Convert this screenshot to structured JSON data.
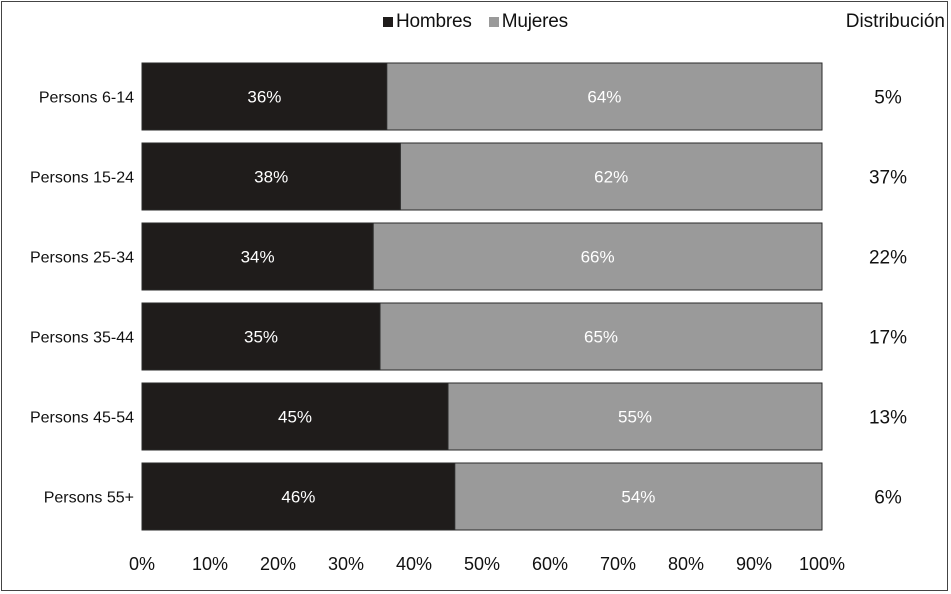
{
  "chart_data": {
    "type": "bar",
    "orientation": "horizontal",
    "stacked": true,
    "normalized_percent": true,
    "categories": [
      "Persons 6-14",
      "Persons 15-24",
      "Persons 25-34",
      "Persons 35-44",
      "Persons 45-54",
      "Persons 55+"
    ],
    "series": [
      {
        "name": "Hombres",
        "values": [
          36,
          38,
          34,
          35,
          45,
          46
        ],
        "labels": [
          "36%",
          "38%",
          "34%",
          "35%",
          "45%",
          "46%"
        ]
      },
      {
        "name": "Mujeres",
        "values": [
          64,
          62,
          66,
          65,
          55,
          54
        ],
        "labels": [
          "64%",
          "62%",
          "66%",
          "65%",
          "55%",
          "54%"
        ]
      }
    ],
    "xlim": [
      0,
      100
    ],
    "x_ticks": [
      "0%",
      "10%",
      "20%",
      "30%",
      "40%",
      "50%",
      "60%",
      "70%",
      "80%",
      "90%",
      "100%"
    ],
    "grid": false,
    "legend_position": "top-center",
    "distribution": {
      "header": "Distribución",
      "values": [
        "5%",
        "37%",
        "22%",
        "17%",
        "13%",
        "6%"
      ]
    },
    "colors": {
      "Hombres": "#1f1c1b",
      "Mujeres": "#9a9a9a",
      "bar_border": "#2a2a2a"
    }
  }
}
